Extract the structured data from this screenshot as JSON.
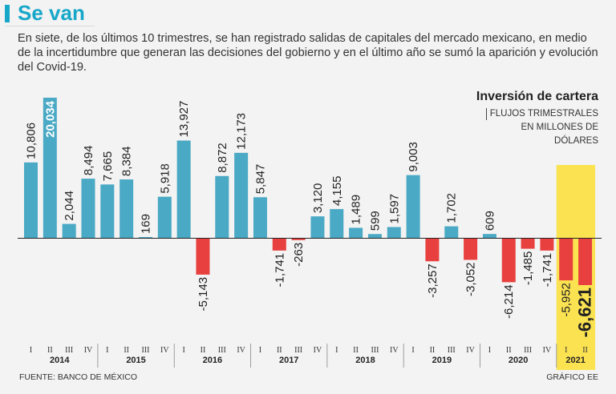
{
  "header": {
    "title": "Se van",
    "description": "En siete, de los últimos 10 trimestres,  se han registrado salidas de capitales del mercado mexicano, en medio de la incertidumbre que generan las decisiones del gobierno y en el último año se sumó la aparición y evolución del Covid-19."
  },
  "footer": {
    "source": "FUENTE: BANCO DE MÉXICO",
    "credit": "GRÁFICO EE"
  },
  "colors": {
    "positive": "#4aa9c4",
    "negative": "#e8403f",
    "highlight": "#fbe251",
    "accent": "#17a7c9",
    "axis": "#222222"
  },
  "chart_data": {
    "type": "bar",
    "title": "Inversión de cartera",
    "subtitle": "FLUJOS TRIMESTRALES EN MILLONES DE DÓLARES",
    "xlabel": "",
    "ylabel": "",
    "ylim": [
      -6621,
      20034
    ],
    "grid": false,
    "highlight_year": "2021",
    "emphasized_bar": "2021-II",
    "years": [
      {
        "year": "2014",
        "quarters": [
          "I",
          "II",
          "III",
          "IV"
        ],
        "values": [
          10806,
          20034,
          2044,
          8494
        ]
      },
      {
        "year": "2015",
        "quarters": [
          "I",
          "II",
          "III",
          "IV"
        ],
        "values": [
          7665,
          8384,
          169,
          5918
        ]
      },
      {
        "year": "2016",
        "quarters": [
          "I",
          "II",
          "III",
          "IV"
        ],
        "values": [
          13927,
          -5143,
          8872,
          12173
        ]
      },
      {
        "year": "2017",
        "quarters": [
          "I",
          "II",
          "III",
          "IV"
        ],
        "values": [
          5847,
          -1741,
          -263,
          3120
        ]
      },
      {
        "year": "2018",
        "quarters": [
          "I",
          "II",
          "III",
          "IV"
        ],
        "values": [
          4155,
          1489,
          599,
          1597
        ]
      },
      {
        "year": "2019",
        "quarters": [
          "I",
          "II",
          "III",
          "IV"
        ],
        "values": [
          9003,
          -3257,
          1702,
          -3052
        ]
      },
      {
        "year": "2020",
        "quarters": [
          "I",
          "II",
          "III",
          "IV"
        ],
        "values": [
          609,
          -6214,
          -1485,
          -1741
        ]
      },
      {
        "year": "2021",
        "quarters": [
          "I",
          "II"
        ],
        "values": [
          -5952,
          -6621
        ]
      }
    ],
    "data_labels": [
      "10,806",
      "20,034",
      "2,044",
      "8,494",
      "7,665",
      "8,384",
      "169",
      "5,918",
      "13,927",
      "-5,143",
      "8,872",
      "12,173",
      "5,847",
      "-1,741",
      "-263",
      "3,120",
      "4,155",
      "1,489",
      "599",
      "1,597",
      "9,003",
      "-3,257",
      "1,702",
      "-3,052",
      "609",
      "-6,214",
      "-1,485",
      "-1,741",
      "-5,952",
      "-6,621"
    ]
  }
}
